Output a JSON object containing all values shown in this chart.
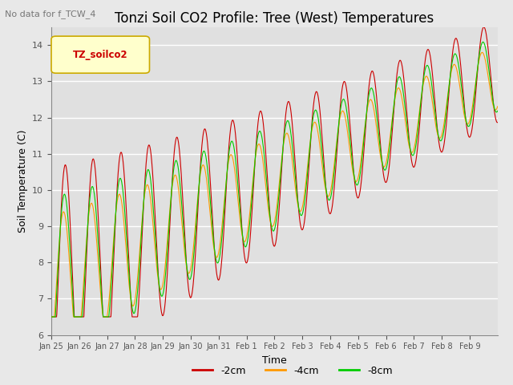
{
  "title": "Tonzi Soil CO2 Profile: Tree (West) Temperatures",
  "subtitle": "No data for f_TCW_4",
  "xlabel": "Time",
  "ylabel": "Soil Temperature (C)",
  "ylim": [
    6.0,
    14.5
  ],
  "yticks": [
    6.0,
    7.0,
    8.0,
    9.0,
    10.0,
    11.0,
    12.0,
    13.0,
    14.0
  ],
  "legend_label": "TZ_soilco2",
  "legend_labels": [
    "-2cm",
    "-4cm",
    "-8cm"
  ],
  "line_colors": [
    "#cc0000",
    "#ff9900",
    "#00cc00"
  ],
  "fig_bg_color": "#e8e8e8",
  "plot_bg_color": "#e0e0e0",
  "xtick_labels": [
    "Jan 25",
    "Jan 26",
    "Jan 27",
    "Jan 28",
    "Jan 29",
    "Jan 30",
    "Jan 31",
    "Feb 1",
    "Feb 2",
    "Feb 3",
    "Feb 4",
    "Feb 5",
    "Feb 6",
    "Feb 7",
    "Feb 8",
    "Feb 9"
  ],
  "title_fontsize": 12,
  "axis_fontsize": 9,
  "tick_fontsize": 8,
  "n_days": 16,
  "n_per_day": 96
}
